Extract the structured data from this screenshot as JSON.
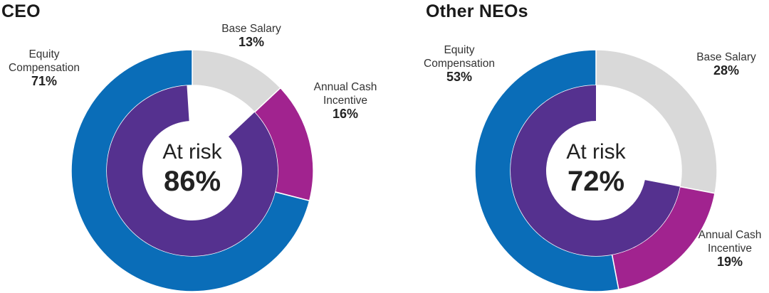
{
  "chart_data": [
    {
      "type": "pie",
      "title": "CEO",
      "outer_ring": [
        {
          "label": [
            "Base Salary"
          ],
          "value": 13,
          "value_label": "13%",
          "color": "#d9d9d9"
        },
        {
          "label": [
            "Annual Cash",
            "Incentive"
          ],
          "value": 16,
          "value_label": "16%",
          "color": "#a1238f"
        },
        {
          "label": [
            "Equity",
            "Compensation"
          ],
          "value": 71,
          "value_label": "71%",
          "color": "#0a6db8"
        }
      ],
      "inner_ring": {
        "label": "At risk",
        "value": 86,
        "value_label": "86%",
        "color": "#55318f",
        "rest_color": "#ffffff"
      }
    },
    {
      "type": "pie",
      "title": "Other NEOs",
      "outer_ring": [
        {
          "label": [
            "Base Salary"
          ],
          "value": 28,
          "value_label": "28%",
          "color": "#d9d9d9"
        },
        {
          "label": [
            "Annual Cash",
            "Incentive"
          ],
          "value": 19,
          "value_label": "19%",
          "color": "#a1238f"
        },
        {
          "label": [
            "Equity",
            "Compensation"
          ],
          "value": 53,
          "value_label": "53%",
          "color": "#0a6db8"
        }
      ],
      "inner_ring": {
        "label": "At risk",
        "value": 72,
        "value_label": "72%",
        "color": "#55318f",
        "rest_color": "#ffffff"
      }
    }
  ]
}
